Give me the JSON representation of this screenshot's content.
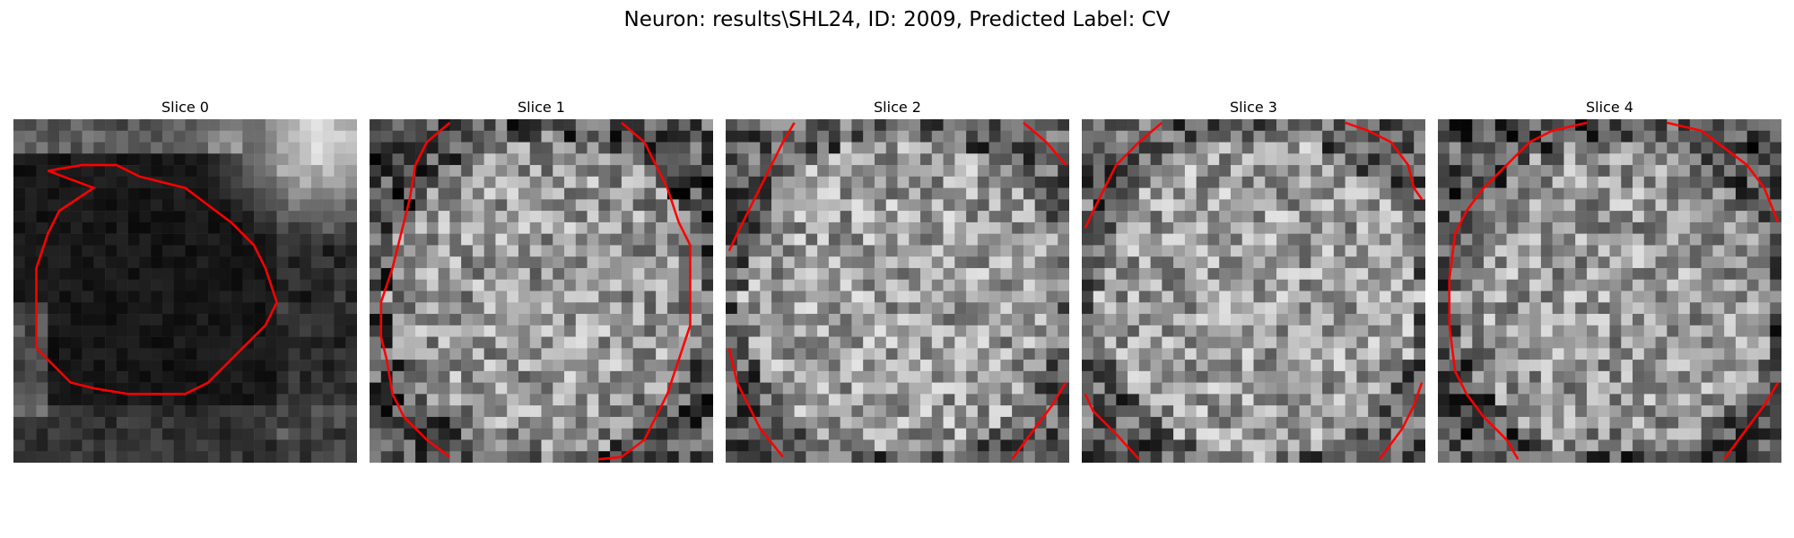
{
  "figure": {
    "title": "Neuron: results\\SHL24, ID: 2009, Predicted Label: CV"
  },
  "slices": [
    {
      "title": "Slice 0",
      "image": "grayscale-microscopy-patch",
      "tone": "dark",
      "contour_color": "#ff0000"
    },
    {
      "title": "Slice 1",
      "image": "grayscale-microscopy-patch",
      "tone": "mid",
      "contour_color": "#ff0000"
    },
    {
      "title": "Slice 2",
      "image": "grayscale-microscopy-patch",
      "tone": "light",
      "contour_color": "#ff0000"
    },
    {
      "title": "Slice 3",
      "image": "grayscale-microscopy-patch",
      "tone": "light",
      "contour_color": "#ff0000"
    },
    {
      "title": "Slice 4",
      "image": "grayscale-microscopy-patch",
      "tone": "mid",
      "contour_color": "#ff0000"
    }
  ]
}
